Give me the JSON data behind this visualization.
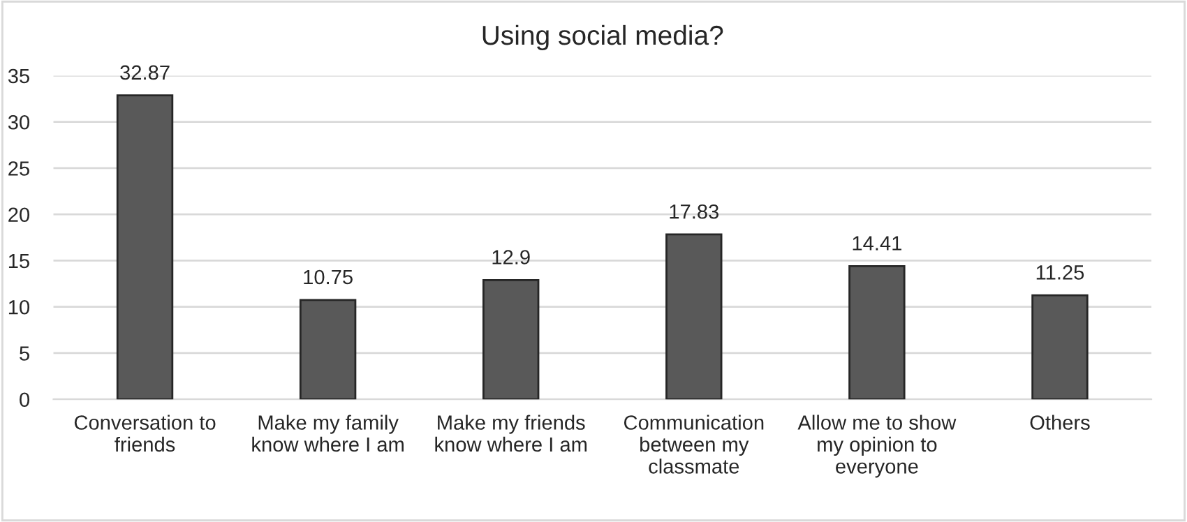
{
  "chart_data": {
    "type": "bar",
    "title": "Using social media?",
    "categories": [
      "Conversation to\nfriends",
      "Make my family\nknow where I am",
      "Make my friends\nknow where I am",
      "Communication\nbetween my\nclassmate",
      "Allow me to show\nmy opinion to\neveryone",
      "Others"
    ],
    "values": [
      32.87,
      10.75,
      12.9,
      17.83,
      14.41,
      11.25
    ],
    "color": "#595959",
    "ylim": [
      0,
      35
    ],
    "yticks": [
      0,
      5,
      10,
      15,
      20,
      25,
      30,
      35
    ],
    "grid": "y",
    "data_labels": true
  }
}
